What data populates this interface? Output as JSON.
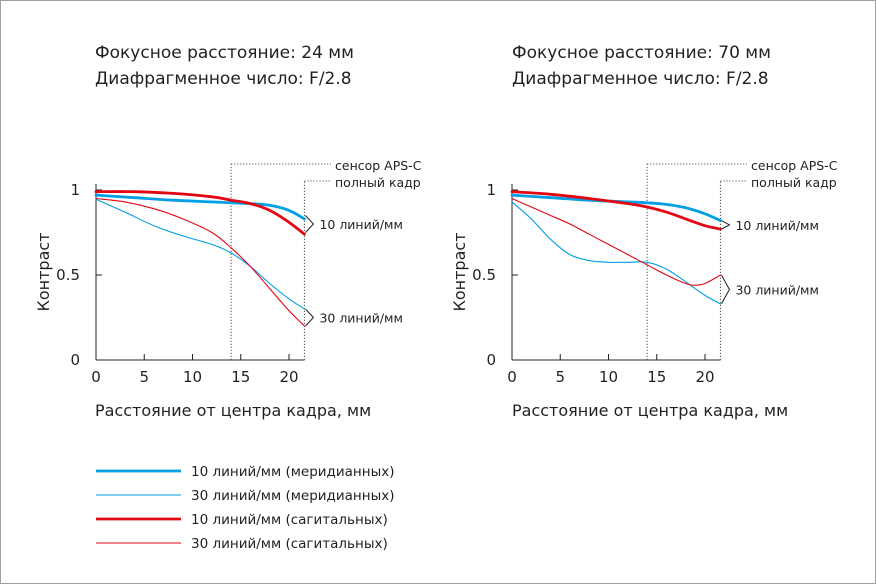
{
  "colors": {
    "meridional": "#009fe3",
    "sagittal": "#e30613",
    "axis": "#231f20",
    "sensor_line": "#555555"
  },
  "legend": {
    "items": [
      {
        "label": "10 линий/мм  (меридианных)",
        "color": "#009fe3",
        "weight": "thick"
      },
      {
        "label": "30 линий/мм  (меридианных)",
        "color": "#009fe3",
        "weight": "thin"
      },
      {
        "label": "10 линий/мм  (сагитальных)",
        "color": "#e30613",
        "weight": "thick"
      },
      {
        "label": "30 линий/мм  (сагитальных)",
        "color": "#e30613",
        "weight": "thin"
      }
    ]
  },
  "chart_data": [
    {
      "type": "line",
      "title_lines": [
        "Фокусное расстояние: 24 мм",
        "Диафрагменное число: F/2.8"
      ],
      "xlabel": "Расстояние от центра кадра, мм",
      "ylabel": "Контраст",
      "xlim": [
        0,
        21.6
      ],
      "ylim": [
        0,
        1
      ],
      "xticks": [
        0,
        5,
        10,
        15,
        20
      ],
      "yticks": [
        0,
        0.5,
        1
      ],
      "ytick_labels": [
        "0",
        "0.5",
        "1"
      ],
      "sensor_markers": [
        {
          "label": "сенсор APS-C",
          "x": 14
        },
        {
          "label": "полный кадр",
          "x": 21.6
        }
      ],
      "group_labels": [
        {
          "label": "10 линий/мм",
          "y_range": [
            0.75,
            0.85
          ]
        },
        {
          "label": "30 линий/мм",
          "y_range": [
            0.2,
            0.3
          ]
        }
      ],
      "series": [
        {
          "name": "10 линий/мм  (меридианных)",
          "color": "#009fe3",
          "width": 2.8,
          "x": [
            0,
            4,
            8,
            12,
            14,
            16,
            18,
            20,
            21.6
          ],
          "y": [
            0.97,
            0.955,
            0.94,
            0.93,
            0.925,
            0.92,
            0.91,
            0.88,
            0.83
          ]
        },
        {
          "name": "30 линий/мм  (меридианных)",
          "color": "#009fe3",
          "width": 1.1,
          "x": [
            0,
            3,
            6,
            9,
            12,
            14,
            16,
            18,
            20,
            21.6
          ],
          "y": [
            0.945,
            0.87,
            0.79,
            0.73,
            0.68,
            0.63,
            0.55,
            0.45,
            0.36,
            0.3
          ]
        },
        {
          "name": "10 линий/мм  (сагитальных)",
          "color": "#e30613",
          "width": 2.8,
          "x": [
            0,
            4,
            8,
            12,
            14,
            16,
            18,
            20,
            21.6
          ],
          "y": [
            0.99,
            0.99,
            0.98,
            0.96,
            0.94,
            0.92,
            0.88,
            0.81,
            0.74
          ]
        },
        {
          "name": "30 линий/мм  (сагитальных)",
          "color": "#e30613",
          "width": 1.1,
          "x": [
            0,
            3,
            6,
            9,
            12,
            14,
            16,
            18,
            20,
            21.6
          ],
          "y": [
            0.95,
            0.93,
            0.89,
            0.83,
            0.75,
            0.66,
            0.55,
            0.42,
            0.29,
            0.2
          ]
        }
      ]
    },
    {
      "type": "line",
      "title_lines": [
        "Фокусное расстояние: 70 мм",
        "Диафрагменное число: F/2.8"
      ],
      "xlabel": "Расстояние от центра кадра, мм",
      "ylabel": "Контраст",
      "xlim": [
        0,
        21.6
      ],
      "ylim": [
        0,
        1
      ],
      "xticks": [
        0,
        5,
        10,
        15,
        20
      ],
      "yticks": [
        0,
        0.5,
        1
      ],
      "ytick_labels": [
        "0",
        "0.5",
        "1"
      ],
      "sensor_markers": [
        {
          "label": "сенсор APS-C",
          "x": 14
        },
        {
          "label": "полный кадр",
          "x": 21.6
        }
      ],
      "group_labels": [
        {
          "label": "10 линий/мм",
          "y_range": [
            0.77,
            0.82
          ]
        },
        {
          "label": "30 линий/мм",
          "y_range": [
            0.33,
            0.5
          ]
        }
      ],
      "series": [
        {
          "name": "10 линий/мм  (меридианных)",
          "color": "#009fe3",
          "width": 2.8,
          "x": [
            0,
            4,
            8,
            12,
            14,
            16,
            18,
            20,
            21.6
          ],
          "y": [
            0.97,
            0.955,
            0.94,
            0.93,
            0.925,
            0.915,
            0.895,
            0.86,
            0.82
          ]
        },
        {
          "name": "30 линий/мм  (меридианных)",
          "color": "#009fe3",
          "width": 1.1,
          "x": [
            0,
            2,
            4,
            6,
            8,
            10,
            12,
            14,
            16,
            18,
            20,
            21.6
          ],
          "y": [
            0.93,
            0.83,
            0.71,
            0.62,
            0.585,
            0.575,
            0.575,
            0.575,
            0.535,
            0.46,
            0.38,
            0.33
          ]
        },
        {
          "name": "10 линий/мм  (сагитальных)",
          "color": "#e30613",
          "width": 2.8,
          "x": [
            0,
            4,
            8,
            12,
            14,
            16,
            18,
            20,
            21.6
          ],
          "y": [
            0.99,
            0.975,
            0.95,
            0.92,
            0.9,
            0.87,
            0.83,
            0.79,
            0.77
          ]
        },
        {
          "name": "30 линий/мм  (сагитальных)",
          "color": "#e30613",
          "width": 1.1,
          "x": [
            0,
            2,
            4,
            6,
            8,
            10,
            12,
            14,
            16,
            18,
            19,
            20,
            21.6
          ],
          "y": [
            0.95,
            0.9,
            0.85,
            0.8,
            0.74,
            0.68,
            0.62,
            0.56,
            0.5,
            0.45,
            0.44,
            0.45,
            0.5
          ]
        }
      ]
    }
  ]
}
